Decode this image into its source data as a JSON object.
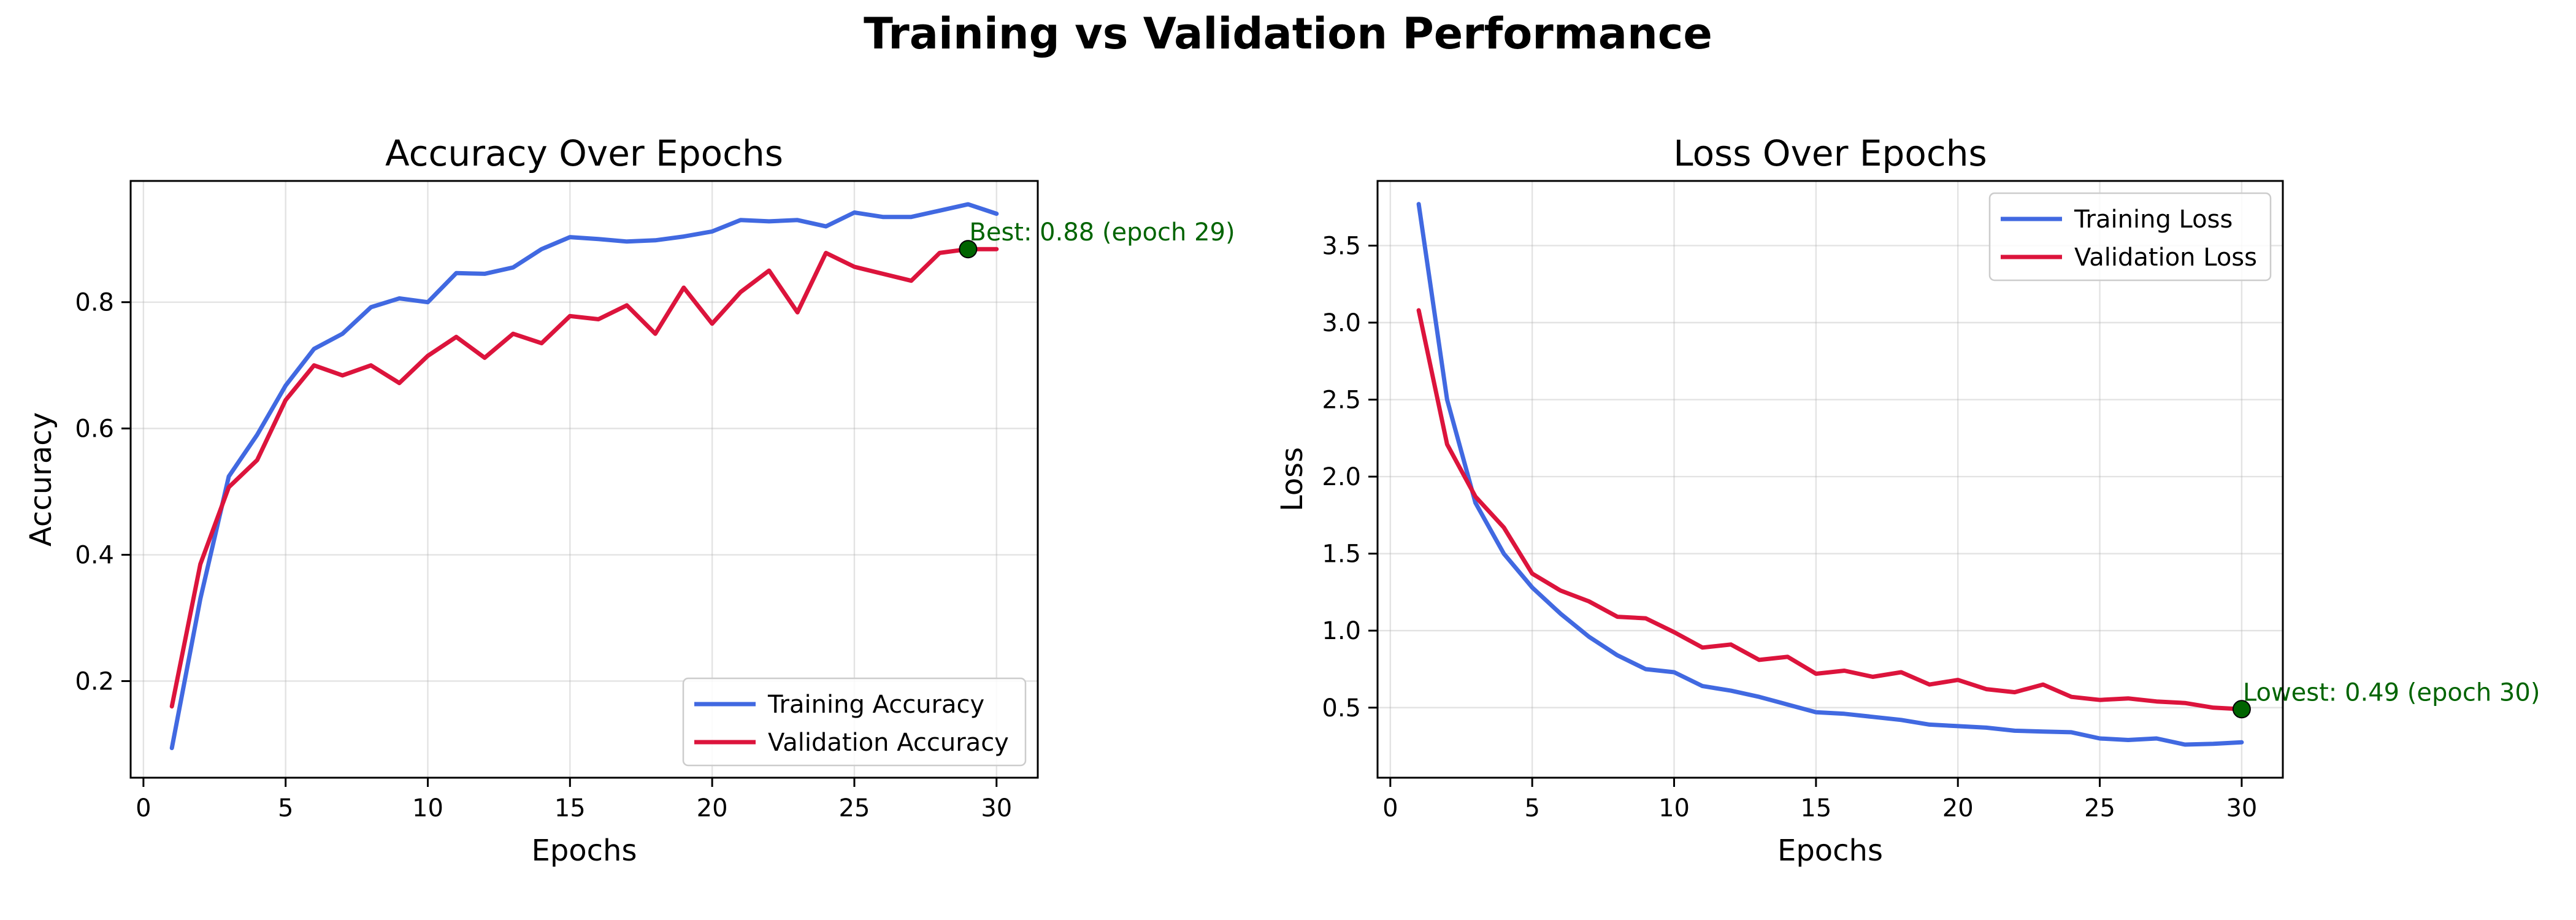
{
  "figure": {
    "title": "Training vs Validation Performance"
  },
  "chart_data": [
    {
      "type": "line",
      "title": "Accuracy Over Epochs",
      "xlabel": "Epochs",
      "ylabel": "Accuracy",
      "xlim": [
        -0.45,
        31.45
      ],
      "ylim": [
        0.047,
        0.992
      ],
      "xticks": [
        0,
        5,
        10,
        15,
        20,
        25,
        30
      ],
      "yticks": [
        0.2,
        0.4,
        0.6,
        0.8
      ],
      "ytick_labels": [
        "0.2",
        "0.4",
        "0.6",
        "0.8"
      ],
      "grid": true,
      "legend": "lower-right",
      "x": [
        1,
        2,
        3,
        4,
        5,
        6,
        7,
        8,
        9,
        10,
        11,
        12,
        13,
        14,
        15,
        16,
        17,
        18,
        19,
        20,
        21,
        22,
        23,
        24,
        25,
        26,
        27,
        28,
        29,
        30
      ],
      "series": [
        {
          "name": "Training Accuracy",
          "color": "#4169e1",
          "values": [
            0.094,
            0.33,
            0.524,
            0.59,
            0.668,
            0.726,
            0.75,
            0.792,
            0.806,
            0.8,
            0.846,
            0.845,
            0.855,
            0.884,
            0.903,
            0.9,
            0.896,
            0.898,
            0.904,
            0.912,
            0.93,
            0.928,
            0.93,
            0.92,
            0.942,
            0.935,
            0.935,
            0.945,
            0.955,
            0.94
          ]
        },
        {
          "name": "Validation Accuracy",
          "color": "#dc143c",
          "values": [
            0.16,
            0.385,
            0.507,
            0.55,
            0.645,
            0.7,
            0.684,
            0.7,
            0.672,
            0.715,
            0.745,
            0.712,
            0.75,
            0.735,
            0.778,
            0.773,
            0.795,
            0.75,
            0.823,
            0.766,
            0.816,
            0.85,
            0.784,
            0.878,
            0.856,
            0.845,
            0.834,
            0.878,
            0.884,
            0.884
          ]
        }
      ],
      "annotation": {
        "x": 29,
        "y": 0.884,
        "text": "Best: 0.88 (epoch 29)",
        "color": "#006400",
        "marker_color": "#006400"
      }
    },
    {
      "type": "line",
      "title": "Loss Over Epochs",
      "xlabel": "Epochs",
      "ylabel": "Loss",
      "xlim": [
        -0.45,
        31.45
      ],
      "ylim": [
        0.045,
        3.92
      ],
      "xticks": [
        0,
        5,
        10,
        15,
        20,
        25,
        30
      ],
      "yticks": [
        0.5,
        1.0,
        1.5,
        2.0,
        2.5,
        3.0,
        3.5
      ],
      "ytick_labels": [
        "0.5",
        "1.0",
        "1.5",
        "2.0",
        "2.5",
        "3.0",
        "3.5"
      ],
      "grid": true,
      "legend": "upper-right",
      "x": [
        1,
        2,
        3,
        4,
        5,
        6,
        7,
        8,
        9,
        10,
        11,
        12,
        13,
        14,
        15,
        16,
        17,
        18,
        19,
        20,
        21,
        22,
        23,
        24,
        25,
        26,
        27,
        28,
        29,
        30
      ],
      "series": [
        {
          "name": "Training Loss",
          "color": "#4169e1",
          "values": [
            3.77,
            2.5,
            1.83,
            1.5,
            1.28,
            1.11,
            0.96,
            0.84,
            0.75,
            0.73,
            0.64,
            0.61,
            0.57,
            0.52,
            0.47,
            0.46,
            0.44,
            0.42,
            0.39,
            0.38,
            0.37,
            0.35,
            0.345,
            0.34,
            0.3,
            0.29,
            0.3,
            0.26,
            0.265,
            0.275
          ]
        },
        {
          "name": "Validation Loss",
          "color": "#dc143c",
          "values": [
            3.08,
            2.21,
            1.87,
            1.67,
            1.37,
            1.26,
            1.19,
            1.09,
            1.08,
            0.99,
            0.89,
            0.91,
            0.81,
            0.83,
            0.72,
            0.74,
            0.7,
            0.73,
            0.65,
            0.68,
            0.62,
            0.6,
            0.65,
            0.57,
            0.55,
            0.56,
            0.54,
            0.53,
            0.5,
            0.49
          ]
        }
      ],
      "annotation": {
        "x": 30,
        "y": 0.49,
        "text": "Lowest: 0.49 (epoch 30)",
        "color": "#006400",
        "marker_color": "#006400"
      }
    }
  ]
}
